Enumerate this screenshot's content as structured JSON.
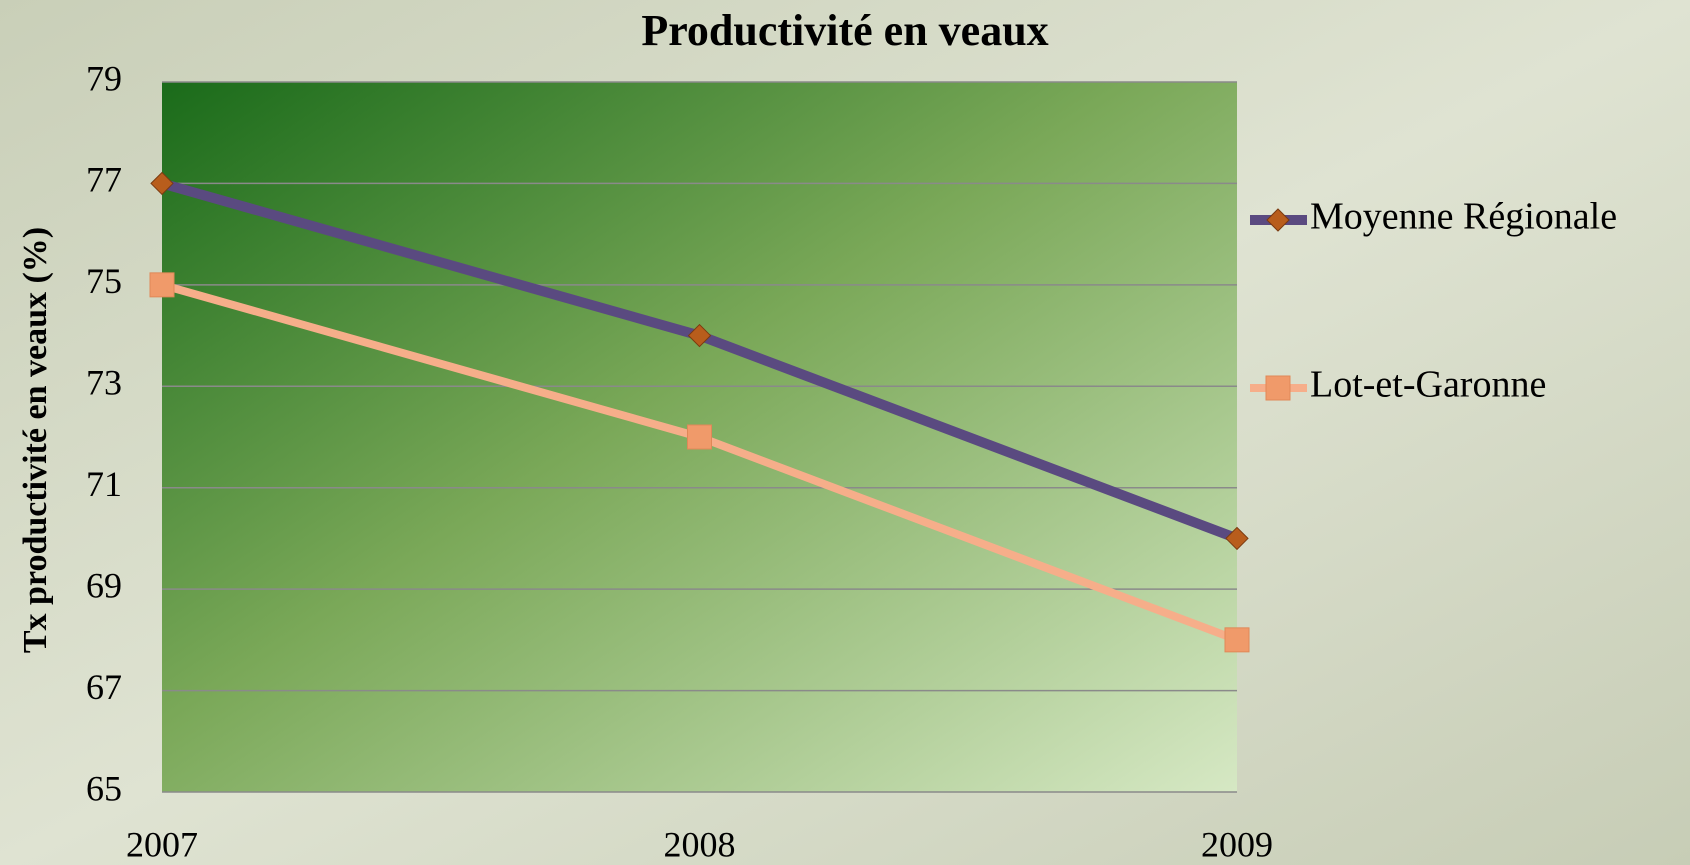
{
  "chart_data": {
    "type": "line",
    "title": "Productivité en veaux",
    "y_label": "Tx productivité en veaux (%)",
    "x": [
      2007,
      2008,
      2009
    ],
    "xlim": [
      2007,
      2009
    ],
    "xticks": [
      2007,
      2008,
      2009
    ],
    "ylim": [
      65,
      79
    ],
    "yticks": [
      65,
      67,
      69,
      71,
      73,
      75,
      77,
      79
    ],
    "grid": true,
    "legend": "right",
    "series": [
      {
        "name": "Moyenne Régionale",
        "color": "#5a4a80",
        "marker": "diamond",
        "marker_color": "#b85d1c",
        "values": [
          77,
          74,
          70
        ]
      },
      {
        "name": "Lot-et-Garonne",
        "color": "#f6ae8a",
        "marker": "square",
        "marker_color": "#f09a6a",
        "values": [
          75,
          72,
          68
        ]
      }
    ]
  }
}
